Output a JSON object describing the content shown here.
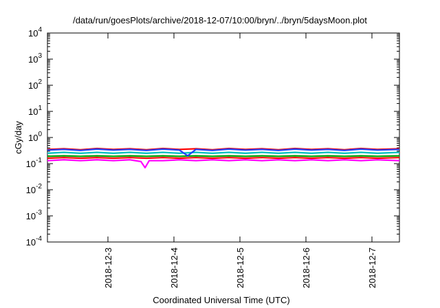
{
  "chart_data": {
    "type": "line",
    "title": "/data/run/goesPlots/archive/2018-12-07/10:00/bryn/../bryn/5daysMoon.plot",
    "xlabel": "Coordinated Universal Time (UTC)",
    "ylabel": "cGy/day",
    "yscale": "log",
    "ylim": [
      0.0001,
      10000
    ],
    "xlim": [
      "2018-12-02T02:00",
      "2018-12-07T10:00"
    ],
    "y_ticks": [
      {
        "value": 0.0001,
        "base": "10",
        "exp": "-4"
      },
      {
        "value": 0.001,
        "base": "10",
        "exp": "-3"
      },
      {
        "value": 0.01,
        "base": "10",
        "exp": "-2"
      },
      {
        "value": 0.1,
        "base": "10",
        "exp": "-1"
      },
      {
        "value": 1,
        "base": "10",
        "exp": "0"
      },
      {
        "value": 10,
        "base": "10",
        "exp": "1"
      },
      {
        "value": 100,
        "base": "10",
        "exp": "2"
      },
      {
        "value": 1000,
        "base": "10",
        "exp": "3"
      },
      {
        "value": 10000,
        "base": "10",
        "exp": "4"
      }
    ],
    "x_ticks": [
      {
        "value": "2018-12-03",
        "label": "2018-12-3"
      },
      {
        "value": "2018-12-04",
        "label": "2018-12-4"
      },
      {
        "value": "2018-12-05",
        "label": "2018-12-5"
      },
      {
        "value": "2018-12-06",
        "label": "2018-12-6"
      },
      {
        "value": "2018-12-07",
        "label": "2018-12-7"
      }
    ],
    "grid": false,
    "legend": "none",
    "series": [
      {
        "color": "#ff00ff",
        "values": [
          [
            "2018-12-02T02:00",
            0.13
          ],
          [
            "2018-12-02T08:00",
            0.14
          ],
          [
            "2018-12-02T14:00",
            0.13
          ],
          [
            "2018-12-02T20:00",
            0.14
          ],
          [
            "2018-12-03T02:00",
            0.13
          ],
          [
            "2018-12-03T08:00",
            0.14
          ],
          [
            "2018-12-03T12:00",
            0.12
          ],
          [
            "2018-12-03T13:30",
            0.07
          ],
          [
            "2018-12-03T15:00",
            0.13
          ],
          [
            "2018-12-03T20:00",
            0.13
          ],
          [
            "2018-12-04T02:00",
            0.14
          ],
          [
            "2018-12-04T08:00",
            0.13
          ],
          [
            "2018-12-04T14:00",
            0.14
          ],
          [
            "2018-12-04T20:00",
            0.13
          ],
          [
            "2018-12-05T02:00",
            0.14
          ],
          [
            "2018-12-05T08:00",
            0.13
          ],
          [
            "2018-12-05T14:00",
            0.14
          ],
          [
            "2018-12-05T20:00",
            0.13
          ],
          [
            "2018-12-06T02:00",
            0.14
          ],
          [
            "2018-12-06T08:00",
            0.13
          ],
          [
            "2018-12-06T14:00",
            0.14
          ],
          [
            "2018-12-06T20:00",
            0.13
          ],
          [
            "2018-12-07T02:00",
            0.14
          ],
          [
            "2018-12-07T10:00",
            0.13
          ]
        ]
      },
      {
        "color": "#ff0000",
        "values": [
          [
            "2018-12-02T02:00",
            0.16
          ],
          [
            "2018-12-02T08:00",
            0.17
          ],
          [
            "2018-12-02T14:00",
            0.16
          ],
          [
            "2018-12-02T20:00",
            0.17
          ],
          [
            "2018-12-03T02:00",
            0.16
          ],
          [
            "2018-12-03T08:00",
            0.17
          ],
          [
            "2018-12-03T14:00",
            0.16
          ],
          [
            "2018-12-03T20:00",
            0.17
          ],
          [
            "2018-12-04T02:00",
            0.16
          ],
          [
            "2018-12-04T08:00",
            0.17
          ],
          [
            "2018-12-04T14:00",
            0.16
          ],
          [
            "2018-12-04T20:00",
            0.17
          ],
          [
            "2018-12-05T02:00",
            0.16
          ],
          [
            "2018-12-05T08:00",
            0.17
          ],
          [
            "2018-12-05T14:00",
            0.16
          ],
          [
            "2018-12-05T20:00",
            0.17
          ],
          [
            "2018-12-06T02:00",
            0.16
          ],
          [
            "2018-12-06T08:00",
            0.17
          ],
          [
            "2018-12-06T14:00",
            0.16
          ],
          [
            "2018-12-06T20:00",
            0.17
          ],
          [
            "2018-12-07T02:00",
            0.16
          ],
          [
            "2018-12-07T10:00",
            0.17
          ]
        ]
      },
      {
        "color": "#00a000",
        "values": [
          [
            "2018-12-02T02:00",
            0.19
          ],
          [
            "2018-12-02T08:00",
            0.2
          ],
          [
            "2018-12-02T14:00",
            0.19
          ],
          [
            "2018-12-02T20:00",
            0.2
          ],
          [
            "2018-12-03T02:00",
            0.19
          ],
          [
            "2018-12-03T08:00",
            0.2
          ],
          [
            "2018-12-03T14:00",
            0.19
          ],
          [
            "2018-12-03T20:00",
            0.2
          ],
          [
            "2018-12-04T02:00",
            0.19
          ],
          [
            "2018-12-04T08:00",
            0.2
          ],
          [
            "2018-12-04T14:00",
            0.19
          ],
          [
            "2018-12-04T20:00",
            0.2
          ],
          [
            "2018-12-05T02:00",
            0.19
          ],
          [
            "2018-12-05T08:00",
            0.2
          ],
          [
            "2018-12-05T14:00",
            0.19
          ],
          [
            "2018-12-05T20:00",
            0.2
          ],
          [
            "2018-12-06T02:00",
            0.19
          ],
          [
            "2018-12-06T08:00",
            0.2
          ],
          [
            "2018-12-06T14:00",
            0.19
          ],
          [
            "2018-12-06T20:00",
            0.2
          ],
          [
            "2018-12-07T02:00",
            0.19
          ],
          [
            "2018-12-07T10:00",
            0.2
          ]
        ]
      },
      {
        "color": "#00c0c0",
        "values": [
          [
            "2018-12-02T02:00",
            0.25
          ],
          [
            "2018-12-02T08:00",
            0.27
          ],
          [
            "2018-12-02T14:00",
            0.25
          ],
          [
            "2018-12-02T20:00",
            0.27
          ],
          [
            "2018-12-03T02:00",
            0.25
          ],
          [
            "2018-12-03T08:00",
            0.27
          ],
          [
            "2018-12-03T14:00",
            0.25
          ],
          [
            "2018-12-03T20:00",
            0.27
          ],
          [
            "2018-12-04T02:00",
            0.25
          ],
          [
            "2018-12-04T08:00",
            0.27
          ],
          [
            "2018-12-04T14:00",
            0.25
          ],
          [
            "2018-12-04T20:00",
            0.27
          ],
          [
            "2018-12-05T02:00",
            0.25
          ],
          [
            "2018-12-05T08:00",
            0.27
          ],
          [
            "2018-12-05T14:00",
            0.25
          ],
          [
            "2018-12-05T20:00",
            0.27
          ],
          [
            "2018-12-06T02:00",
            0.25
          ],
          [
            "2018-12-06T08:00",
            0.27
          ],
          [
            "2018-12-06T14:00",
            0.25
          ],
          [
            "2018-12-06T20:00",
            0.27
          ],
          [
            "2018-12-07T02:00",
            0.25
          ],
          [
            "2018-12-07T10:00",
            0.27
          ]
        ]
      },
      {
        "color": "#ff0000",
        "values": [
          [
            "2018-12-02T02:00",
            0.35
          ],
          [
            "2018-12-02T08:00",
            0.37
          ],
          [
            "2018-12-02T14:00",
            0.34
          ],
          [
            "2018-12-02T20:00",
            0.38
          ],
          [
            "2018-12-03T02:00",
            0.35
          ],
          [
            "2018-12-03T08:00",
            0.37
          ],
          [
            "2018-12-03T14:00",
            0.34
          ],
          [
            "2018-12-03T20:00",
            0.38
          ],
          [
            "2018-12-04T02:00",
            0.35
          ],
          [
            "2018-12-04T08:00",
            0.37
          ],
          [
            "2018-12-04T14:00",
            0.34
          ],
          [
            "2018-12-04T20:00",
            0.38
          ],
          [
            "2018-12-05T02:00",
            0.35
          ],
          [
            "2018-12-05T08:00",
            0.37
          ],
          [
            "2018-12-05T14:00",
            0.34
          ],
          [
            "2018-12-05T20:00",
            0.38
          ],
          [
            "2018-12-06T02:00",
            0.35
          ],
          [
            "2018-12-06T08:00",
            0.37
          ],
          [
            "2018-12-06T14:00",
            0.34
          ],
          [
            "2018-12-06T20:00",
            0.38
          ],
          [
            "2018-12-07T02:00",
            0.35
          ],
          [
            "2018-12-07T10:00",
            0.37
          ]
        ]
      },
      {
        "color": "#2040ff",
        "values": [
          [
            "2018-12-02T02:00",
            0.33
          ],
          [
            "2018-12-02T08:00",
            0.35
          ],
          [
            "2018-12-02T14:00",
            0.32
          ],
          [
            "2018-12-02T20:00",
            0.36
          ],
          [
            "2018-12-03T02:00",
            0.33
          ],
          [
            "2018-12-03T08:00",
            0.35
          ],
          [
            "2018-12-03T14:00",
            0.32
          ],
          [
            "2018-12-03T20:00",
            0.36
          ],
          [
            "2018-12-04T02:00",
            0.33
          ],
          [
            "2018-12-04T05:00",
            0.2
          ],
          [
            "2018-12-04T08:00",
            0.35
          ],
          [
            "2018-12-04T14:00",
            0.32
          ],
          [
            "2018-12-04T20:00",
            0.36
          ],
          [
            "2018-12-05T02:00",
            0.33
          ],
          [
            "2018-12-05T08:00",
            0.35
          ],
          [
            "2018-12-05T14:00",
            0.32
          ],
          [
            "2018-12-05T20:00",
            0.36
          ],
          [
            "2018-12-06T02:00",
            0.33
          ],
          [
            "2018-12-06T08:00",
            0.35
          ],
          [
            "2018-12-06T14:00",
            0.32
          ],
          [
            "2018-12-06T20:00",
            0.36
          ],
          [
            "2018-12-07T02:00",
            0.33
          ],
          [
            "2018-12-07T10:00",
            0.35
          ]
        ]
      }
    ]
  }
}
